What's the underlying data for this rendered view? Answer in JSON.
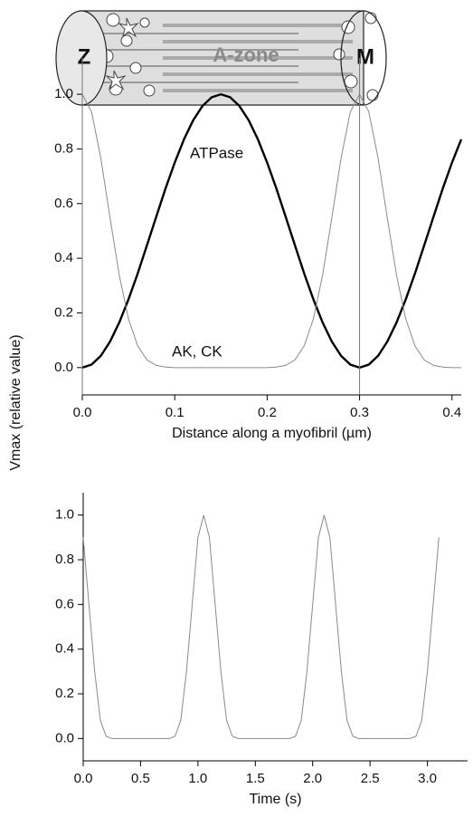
{
  "diagram": {
    "z_label": "Z",
    "a_label": "A-zone",
    "m_label": "M"
  },
  "chart_data": [
    {
      "type": "line",
      "ylabel": "Vmax (relative value)",
      "xlabel": "Distance along a myofibril (µm)",
      "x": [
        0,
        0.01,
        0.02,
        0.03,
        0.04,
        0.05,
        0.06,
        0.07,
        0.08,
        0.09,
        0.1,
        0.11,
        0.12,
        0.13,
        0.14,
        0.15,
        0.16,
        0.17,
        0.18,
        0.19,
        0.2,
        0.21,
        0.22,
        0.23,
        0.24,
        0.25,
        0.26,
        0.27,
        0.28,
        0.29,
        0.3,
        0.31,
        0.32,
        0.33,
        0.34,
        0.35,
        0.36,
        0.37,
        0.38,
        0.39,
        0.4,
        0.41
      ],
      "series": [
        {
          "name": "ATPase",
          "color": "#000000",
          "values": [
            0,
            0.011,
            0.043,
            0.095,
            0.165,
            0.25,
            0.345,
            0.448,
            0.552,
            0.655,
            0.75,
            0.835,
            0.905,
            0.957,
            0.989,
            1,
            0.989,
            0.957,
            0.905,
            0.835,
            0.75,
            0.655,
            0.552,
            0.448,
            0.345,
            0.25,
            0.165,
            0.095,
            0.043,
            0.011,
            0,
            0.011,
            0.043,
            0.095,
            0.165,
            0.25,
            0.345,
            0.448,
            0.552,
            0.655,
            0.75,
            0.835
          ]
        },
        {
          "name": "AK, CK",
          "color": "#8a8a8a",
          "values": [
            1,
            0.936,
            0.767,
            0.548,
            0.338,
            0.178,
            0.079,
            0.028,
            0.008,
            0.002,
            0,
            0,
            0,
            0,
            0,
            0,
            0,
            0,
            0,
            0,
            0,
            0.002,
            0.008,
            0.028,
            0.079,
            0.178,
            0.338,
            0.548,
            0.767,
            0.936,
            1,
            0.936,
            0.767,
            0.548,
            0.338,
            0.178,
            0.079,
            0.028,
            0.008,
            0.002,
            0,
            0
          ]
        }
      ],
      "xlim": [
        0,
        0.41
      ],
      "xticks": [
        {
          "value": 0,
          "label": "0.0"
        },
        0.1,
        0.2,
        0.3,
        0.4
      ],
      "ylim": [
        -0.1,
        1.05
      ],
      "yticks": [
        {
          "value": 0,
          "label": "0.0"
        },
        0.2,
        0.4,
        0.6,
        0.8,
        {
          "value": 1,
          "label": "1.0"
        }
      ]
    },
    {
      "type": "line",
      "xlabel": "Time (s)",
      "x": [
        0,
        0.05,
        0.1,
        0.15,
        0.2,
        0.25,
        0.3,
        0.35,
        0.4,
        0.45,
        0.5,
        0.55,
        0.6,
        0.65,
        0.7,
        0.75,
        0.8,
        0.85,
        0.9,
        0.95,
        1,
        1.05,
        1.1,
        1.15,
        1.2,
        1.25,
        1.3,
        1.35,
        1.4,
        1.45,
        1.5,
        1.55,
        1.6,
        1.65,
        1.7,
        1.75,
        1.8,
        1.85,
        1.9,
        1.95,
        2,
        2.05,
        2.1,
        2.15,
        2.2,
        2.25,
        2.3,
        2.35,
        2.4,
        2.45,
        2.5,
        2.55,
        2.6,
        2.65,
        2.7,
        2.75,
        2.8,
        2.85,
        2.9,
        2.95,
        3,
        3.05,
        3.1
      ],
      "color": "#8a8a8a",
      "values": [
        0.9,
        0.6,
        0.3,
        0.08,
        0.01,
        0,
        0,
        0,
        0,
        0,
        0,
        0,
        0,
        0,
        0,
        0,
        0.01,
        0.08,
        0.3,
        0.6,
        0.9,
        1,
        0.9,
        0.6,
        0.3,
        0.08,
        0.01,
        0,
        0,
        0,
        0,
        0,
        0,
        0,
        0,
        0,
        0,
        0.01,
        0.08,
        0.3,
        0.6,
        0.9,
        1,
        0.9,
        0.6,
        0.3,
        0.08,
        0.01,
        0,
        0,
        0,
        0,
        0,
        0,
        0,
        0,
        0,
        0,
        0.01,
        0.08,
        0.3,
        0.6,
        0.9
      ],
      "xlim": [
        0,
        3.35
      ],
      "xticks": [
        {
          "value": 0,
          "label": "0.0"
        },
        0.5,
        {
          "value": 1,
          "label": "1.0"
        },
        1.5,
        {
          "value": 2,
          "label": "2.0"
        },
        2.5,
        {
          "value": 3,
          "label": "3.0"
        }
      ],
      "ylim": [
        -0.1,
        1.1
      ],
      "yticks": [
        {
          "value": 0,
          "label": "0.0"
        },
        0.2,
        0.4,
        0.6,
        0.8,
        {
          "value": 1,
          "label": "1.0"
        }
      ]
    }
  ]
}
